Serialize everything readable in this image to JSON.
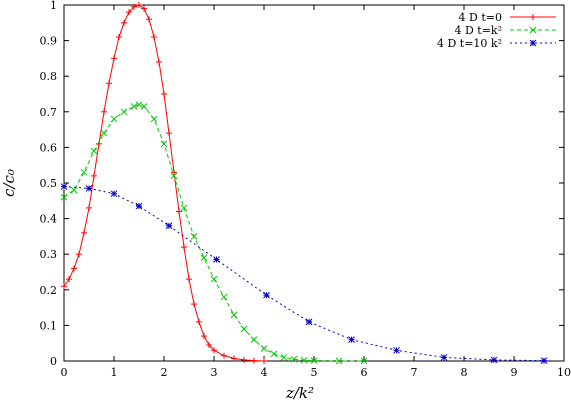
{
  "chart_data": {
    "type": "line",
    "xlabel": "z/k²",
    "ylabel": "c/c₀",
    "xlim": [
      0,
      10
    ],
    "ylim": [
      0,
      1
    ],
    "xticks": [
      "0",
      "1",
      "2",
      "3",
      "4",
      "5",
      "6",
      "7",
      "8",
      "9",
      "10"
    ],
    "yticks": [
      "0",
      "0.1",
      "0.2",
      "0.3",
      "0.4",
      "0.5",
      "0.6",
      "0.7",
      "0.8",
      "0.9",
      "1"
    ],
    "grid": false,
    "legend_position": "top-right",
    "series": [
      {
        "name": "4 D t=0",
        "color": "#ff0000",
        "marker": "plus",
        "line": "solid",
        "x": [
          0,
          0.1,
          0.2,
          0.3,
          0.4,
          0.5,
          0.6,
          0.7,
          0.8,
          0.9,
          1.0,
          1.1,
          1.2,
          1.3,
          1.4,
          1.5,
          1.6,
          1.7,
          1.8,
          1.9,
          2.0,
          2.1,
          2.2,
          2.3,
          2.4,
          2.5,
          2.6,
          2.7,
          2.8,
          2.9,
          3.0,
          3.2,
          3.4,
          3.6,
          3.8,
          4.0
        ],
        "y": [
          0.21,
          0.23,
          0.26,
          0.3,
          0.36,
          0.43,
          0.52,
          0.61,
          0.7,
          0.78,
          0.85,
          0.91,
          0.95,
          0.98,
          0.995,
          1.0,
          0.99,
          0.96,
          0.91,
          0.84,
          0.75,
          0.64,
          0.53,
          0.42,
          0.32,
          0.23,
          0.16,
          0.11,
          0.07,
          0.045,
          0.03,
          0.015,
          0.007,
          0.003,
          0.001,
          0.0
        ]
      },
      {
        "name": "4 D t=k²",
        "color": "#00cc00",
        "marker": "cross",
        "line": "dashed",
        "x": [
          0,
          0.2,
          0.4,
          0.6,
          0.8,
          1.0,
          1.2,
          1.4,
          1.5,
          1.6,
          1.8,
          2.0,
          2.2,
          2.4,
          2.6,
          2.8,
          3.0,
          3.2,
          3.4,
          3.6,
          3.8,
          4.0,
          4.2,
          4.4,
          4.6,
          4.8,
          5.0,
          5.5,
          6.0
        ],
        "y": [
          0.46,
          0.48,
          0.53,
          0.59,
          0.64,
          0.68,
          0.7,
          0.715,
          0.72,
          0.715,
          0.68,
          0.61,
          0.52,
          0.43,
          0.35,
          0.29,
          0.23,
          0.18,
          0.13,
          0.09,
          0.06,
          0.035,
          0.02,
          0.01,
          0.005,
          0.002,
          0.001,
          0.0,
          0.0
        ]
      },
      {
        "name": "4 D t=10 k²",
        "color": "#0000cc",
        "marker": "star",
        "line": "dotted",
        "x": [
          0,
          0.5,
          1.0,
          1.5,
          2.1,
          3.05,
          4.05,
          4.9,
          5.75,
          6.65,
          7.6,
          8.6,
          9.6
        ],
        "y": [
          0.49,
          0.485,
          0.47,
          0.435,
          0.38,
          0.285,
          0.185,
          0.11,
          0.06,
          0.03,
          0.01,
          0.003,
          0.001
        ]
      }
    ]
  }
}
